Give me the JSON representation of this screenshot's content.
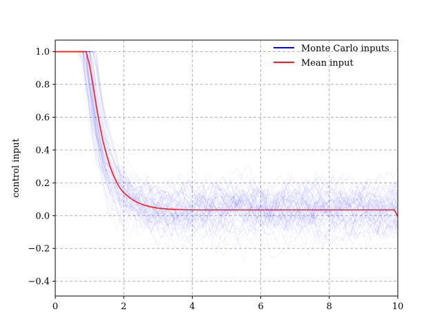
{
  "chart_data": {
    "type": "line",
    "title": "",
    "xlabel": "",
    "ylabel": "control input",
    "xlim": [
      0,
      10
    ],
    "ylim": [
      -0.49,
      1.07
    ],
    "xticks": [
      0,
      2,
      4,
      6,
      8,
      10
    ],
    "xtick_labels": [
      "0",
      "2",
      "4",
      "6",
      "8",
      "10"
    ],
    "yticks": [
      1.0,
      0.8,
      0.6,
      0.4,
      0.2,
      0.0,
      -0.2,
      -0.4
    ],
    "ytick_labels": [
      "1.0",
      "0.8",
      "0.6",
      "0.4",
      "0.2",
      "0.0",
      "−0.2",
      "−0.4"
    ],
    "grid": true,
    "legend": {
      "position": "top-right",
      "entries": [
        {
          "label": "Monte Carlo inputs",
          "color": "#0000ff"
        },
        {
          "label": "Mean input",
          "color": "#ff1a1a"
        }
      ]
    },
    "series": [
      {
        "name": "Mean input",
        "color": "#ff1a1a",
        "x": [
          0,
          0.5,
          0.9,
          1.0,
          1.1,
          1.2,
          1.3,
          1.4,
          1.5,
          1.6,
          1.7,
          1.8,
          1.9,
          2.0,
          2.2,
          2.4,
          2.6,
          2.8,
          3.0,
          3.3,
          3.6,
          4.0,
          5.0,
          6.0,
          7.0,
          8.0,
          9.0,
          9.9,
          10.0
        ],
        "values": [
          1.0,
          1.0,
          1.0,
          0.92,
          0.8,
          0.67,
          0.55,
          0.45,
          0.37,
          0.3,
          0.245,
          0.2,
          0.165,
          0.14,
          0.105,
          0.08,
          0.064,
          0.053,
          0.046,
          0.04,
          0.037,
          0.035,
          0.035,
          0.035,
          0.035,
          0.035,
          0.035,
          0.035,
          -0.005
        ]
      }
    ],
    "monte_carlo": {
      "name": "Monte Carlo inputs",
      "color": "#0000ff",
      "count": 60,
      "steady_mean": 0.035,
      "steady_spread": 0.1
    }
  }
}
